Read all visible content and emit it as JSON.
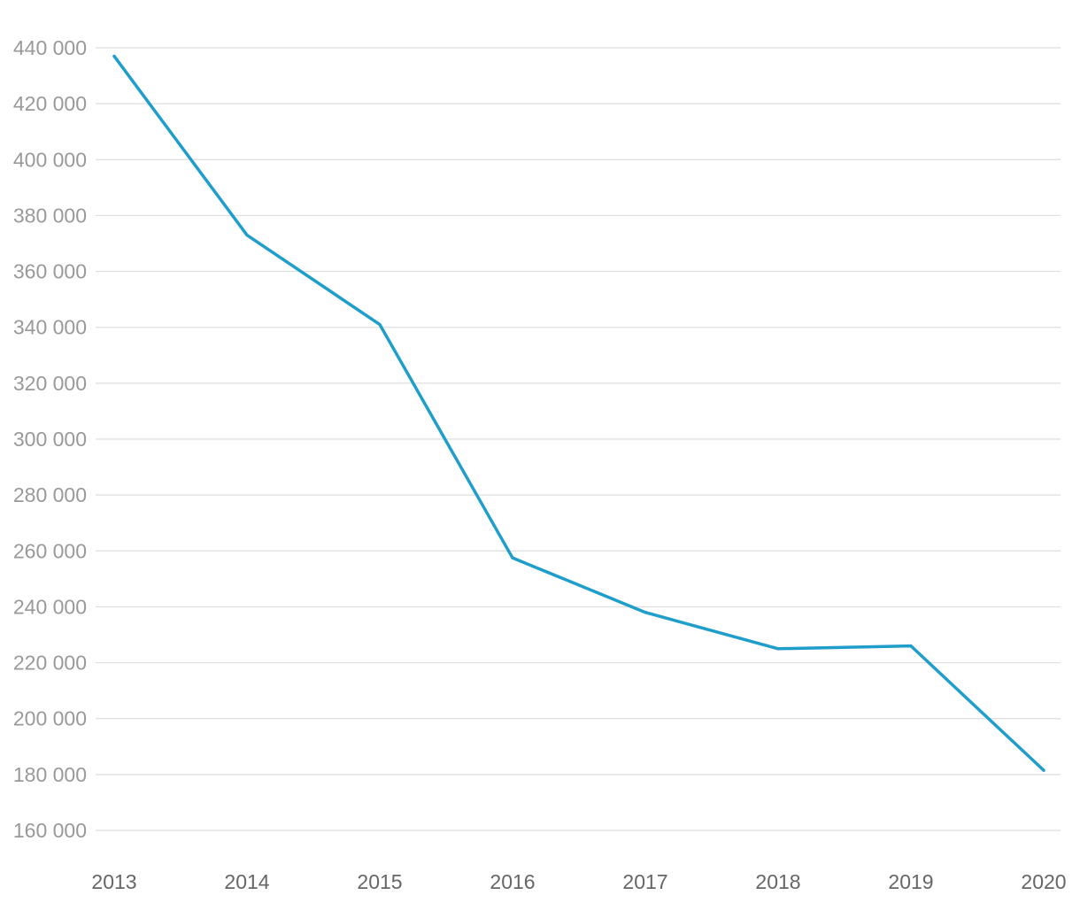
{
  "chart_data": {
    "type": "line",
    "title": "",
    "xlabel": "",
    "ylabel": "",
    "x": [
      2013,
      2014,
      2015,
      2016,
      2017,
      2018,
      2019,
      2020
    ],
    "x_tick_labels": [
      "2013",
      "2014",
      "2015",
      "2016",
      "2017",
      "2018",
      "2019",
      "2020"
    ],
    "series": [
      {
        "values": [
          437000,
          373000,
          341000,
          257500,
          238000,
          225000,
          226000,
          181500
        ]
      }
    ],
    "ylim": [
      160000,
      440000
    ],
    "y_ticks": [
      160000,
      180000,
      200000,
      220000,
      240000,
      260000,
      280000,
      300000,
      320000,
      340000,
      360000,
      380000,
      400000,
      420000,
      440000
    ],
    "y_tick_labels": [
      "160 000",
      "180 000",
      "200 000",
      "220 000",
      "240 000",
      "260 000",
      "280 000",
      "300 000",
      "320 000",
      "340 000",
      "360 000",
      "380 000",
      "400 000",
      "420 000",
      "440 000"
    ],
    "grid": true,
    "legend": "none",
    "colors": {
      "line": "#1f9ecb",
      "grid": "#dedede",
      "tick_text": "#999999",
      "x_tick_text": "#666666"
    }
  }
}
